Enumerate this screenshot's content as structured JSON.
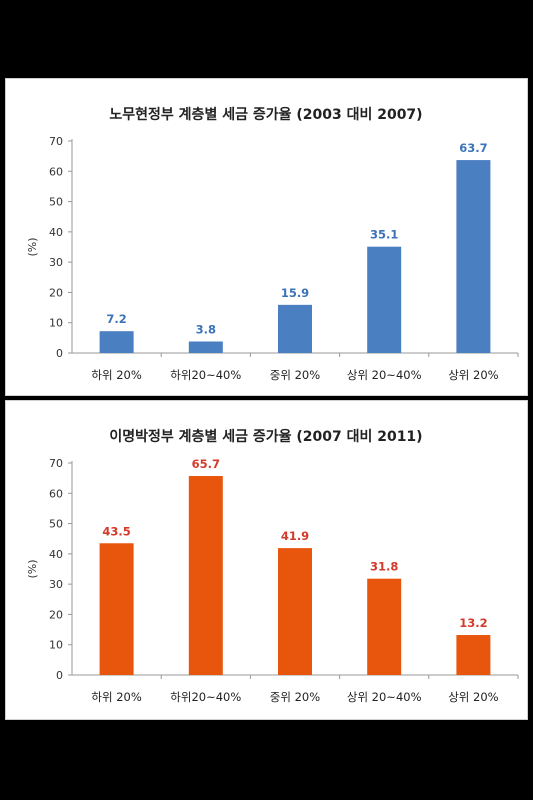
{
  "charts": {
    "top": {
      "color": "#4a7fc1",
      "label_color": "#3b74b8"
    },
    "bottom": {
      "color": "#e8560e",
      "label_color": "#d33a2b"
    }
  },
  "chart_data": [
    {
      "type": "bar",
      "title": "노무현정부 계층별 세금 증가율 (2003 대비 2007)",
      "ylabel": "(%)",
      "xlabel": "",
      "categories": [
        "하위 20%",
        "하위20~40%",
        "중위 20%",
        "상위 20~40%",
        "상위 20%"
      ],
      "values": [
        7.2,
        3.8,
        15.9,
        35.1,
        63.7
      ],
      "value_labels": [
        "7.2",
        "3.8",
        "15.9",
        "35.1",
        "63.7"
      ],
      "ylim": [
        0,
        70
      ],
      "yticks": [
        0,
        10,
        20,
        30,
        40,
        50,
        60,
        70
      ],
      "grid": false,
      "legend": "none"
    },
    {
      "type": "bar",
      "title": "이명박정부 계층별 세금 증가율 (2007 대비 2011)",
      "ylabel": "(%)",
      "xlabel": "",
      "categories": [
        "하위 20%",
        "하위20~40%",
        "중위 20%",
        "상위 20~40%",
        "상위 20%"
      ],
      "values": [
        43.5,
        65.7,
        41.9,
        31.8,
        13.2
      ],
      "value_labels": [
        "43.5",
        "65.7",
        "41.9",
        "31.8",
        "13.2"
      ],
      "ylim": [
        0,
        70
      ],
      "yticks": [
        0,
        10,
        20,
        30,
        40,
        50,
        60,
        70
      ],
      "grid": false,
      "legend": "none"
    }
  ]
}
